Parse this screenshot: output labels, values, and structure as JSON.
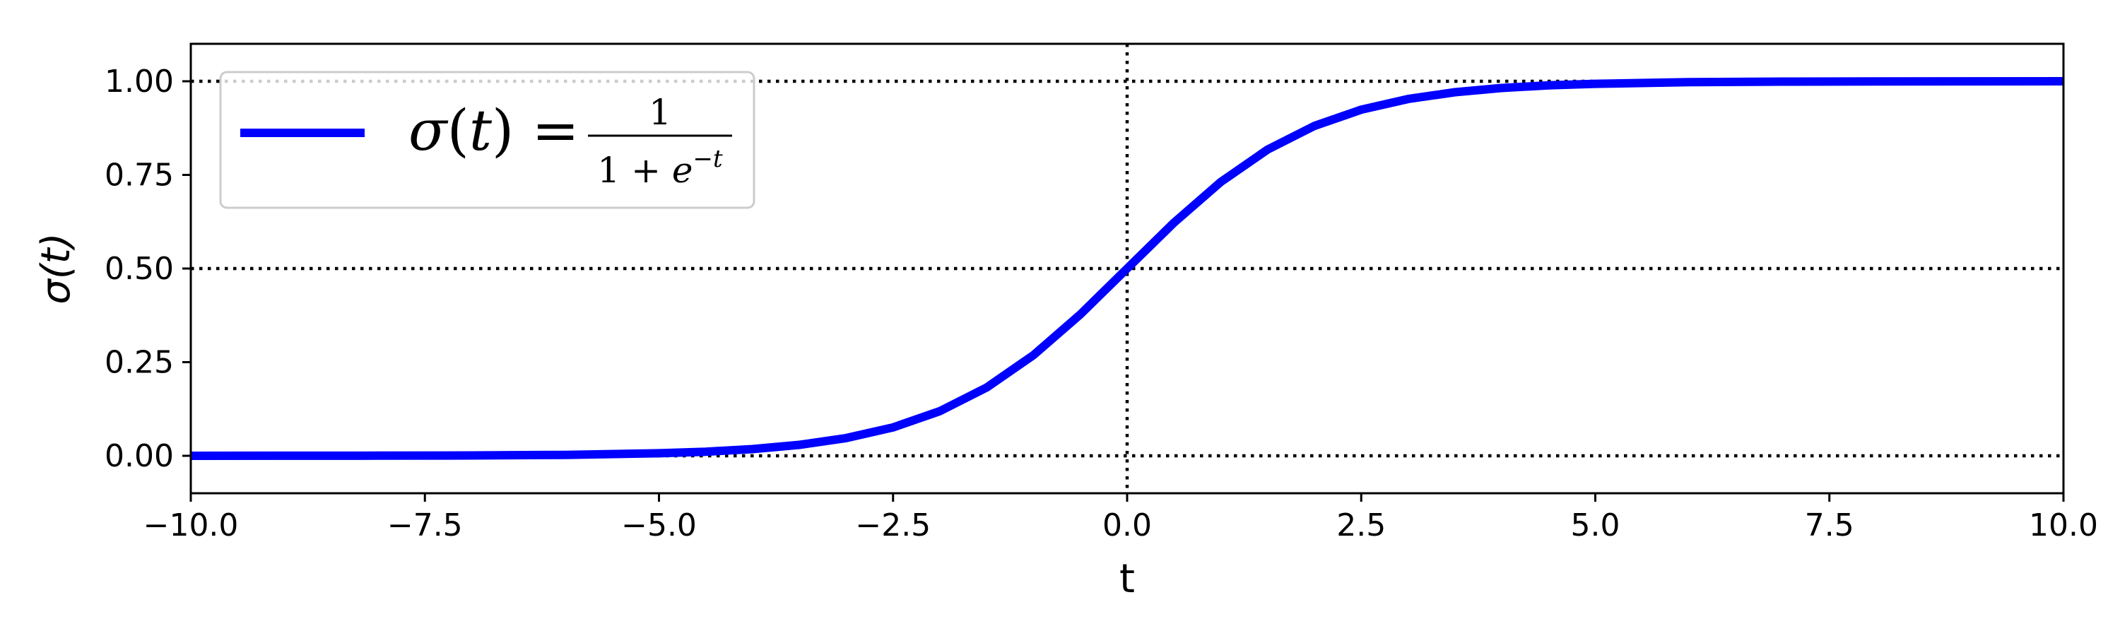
{
  "chart_data": {
    "type": "line",
    "title": "",
    "xlabel": "t",
    "ylabel": "σ(t)",
    "xlim": [
      -10,
      10
    ],
    "ylim": [
      -0.1,
      1.1
    ],
    "xticks": [
      -10,
      -7.5,
      -5,
      -2.5,
      0,
      2.5,
      5,
      7.5,
      10
    ],
    "xtick_labels": [
      "−10.0",
      "−7.5",
      "−5.0",
      "−2.5",
      "0.0",
      "2.5",
      "5.0",
      "7.5",
      "10.0"
    ],
    "yticks": [
      0,
      0.25,
      0.5,
      0.75,
      1
    ],
    "ytick_labels": [
      "0.00",
      "0.25",
      "0.50",
      "0.75",
      "1.00"
    ],
    "grid": false,
    "reference_lines": {
      "horizontal": [
        0,
        0.5,
        1
      ],
      "vertical": [
        0
      ],
      "style": "dotted",
      "color": "#000000"
    },
    "legend": {
      "placement": "upper-left",
      "entries": [
        "σ(t) = 1 / (1 + e^−t)"
      ]
    },
    "series": [
      {
        "name": "σ(t) = 1 / (1 + e^−t)",
        "color": "#0000ff",
        "x": [
          -10,
          -9,
          -8,
          -7,
          -6,
          -5,
          -4.5,
          -4,
          -3.5,
          -3,
          -2.5,
          -2,
          -1.5,
          -1,
          -0.5,
          0,
          0.5,
          1,
          1.5,
          2,
          2.5,
          3,
          3.5,
          4,
          4.5,
          5,
          6,
          7,
          8,
          9,
          10
        ],
        "values": [
          0.0,
          0.0001,
          0.0003,
          0.0009,
          0.0025,
          0.0067,
          0.011,
          0.018,
          0.0293,
          0.0474,
          0.0759,
          0.1192,
          0.1824,
          0.2689,
          0.3775,
          0.5,
          0.6225,
          0.7311,
          0.8176,
          0.8808,
          0.9241,
          0.9526,
          0.9707,
          0.982,
          0.989,
          0.9933,
          0.9975,
          0.9991,
          0.9997,
          0.9999,
          1.0
        ]
      }
    ]
  }
}
